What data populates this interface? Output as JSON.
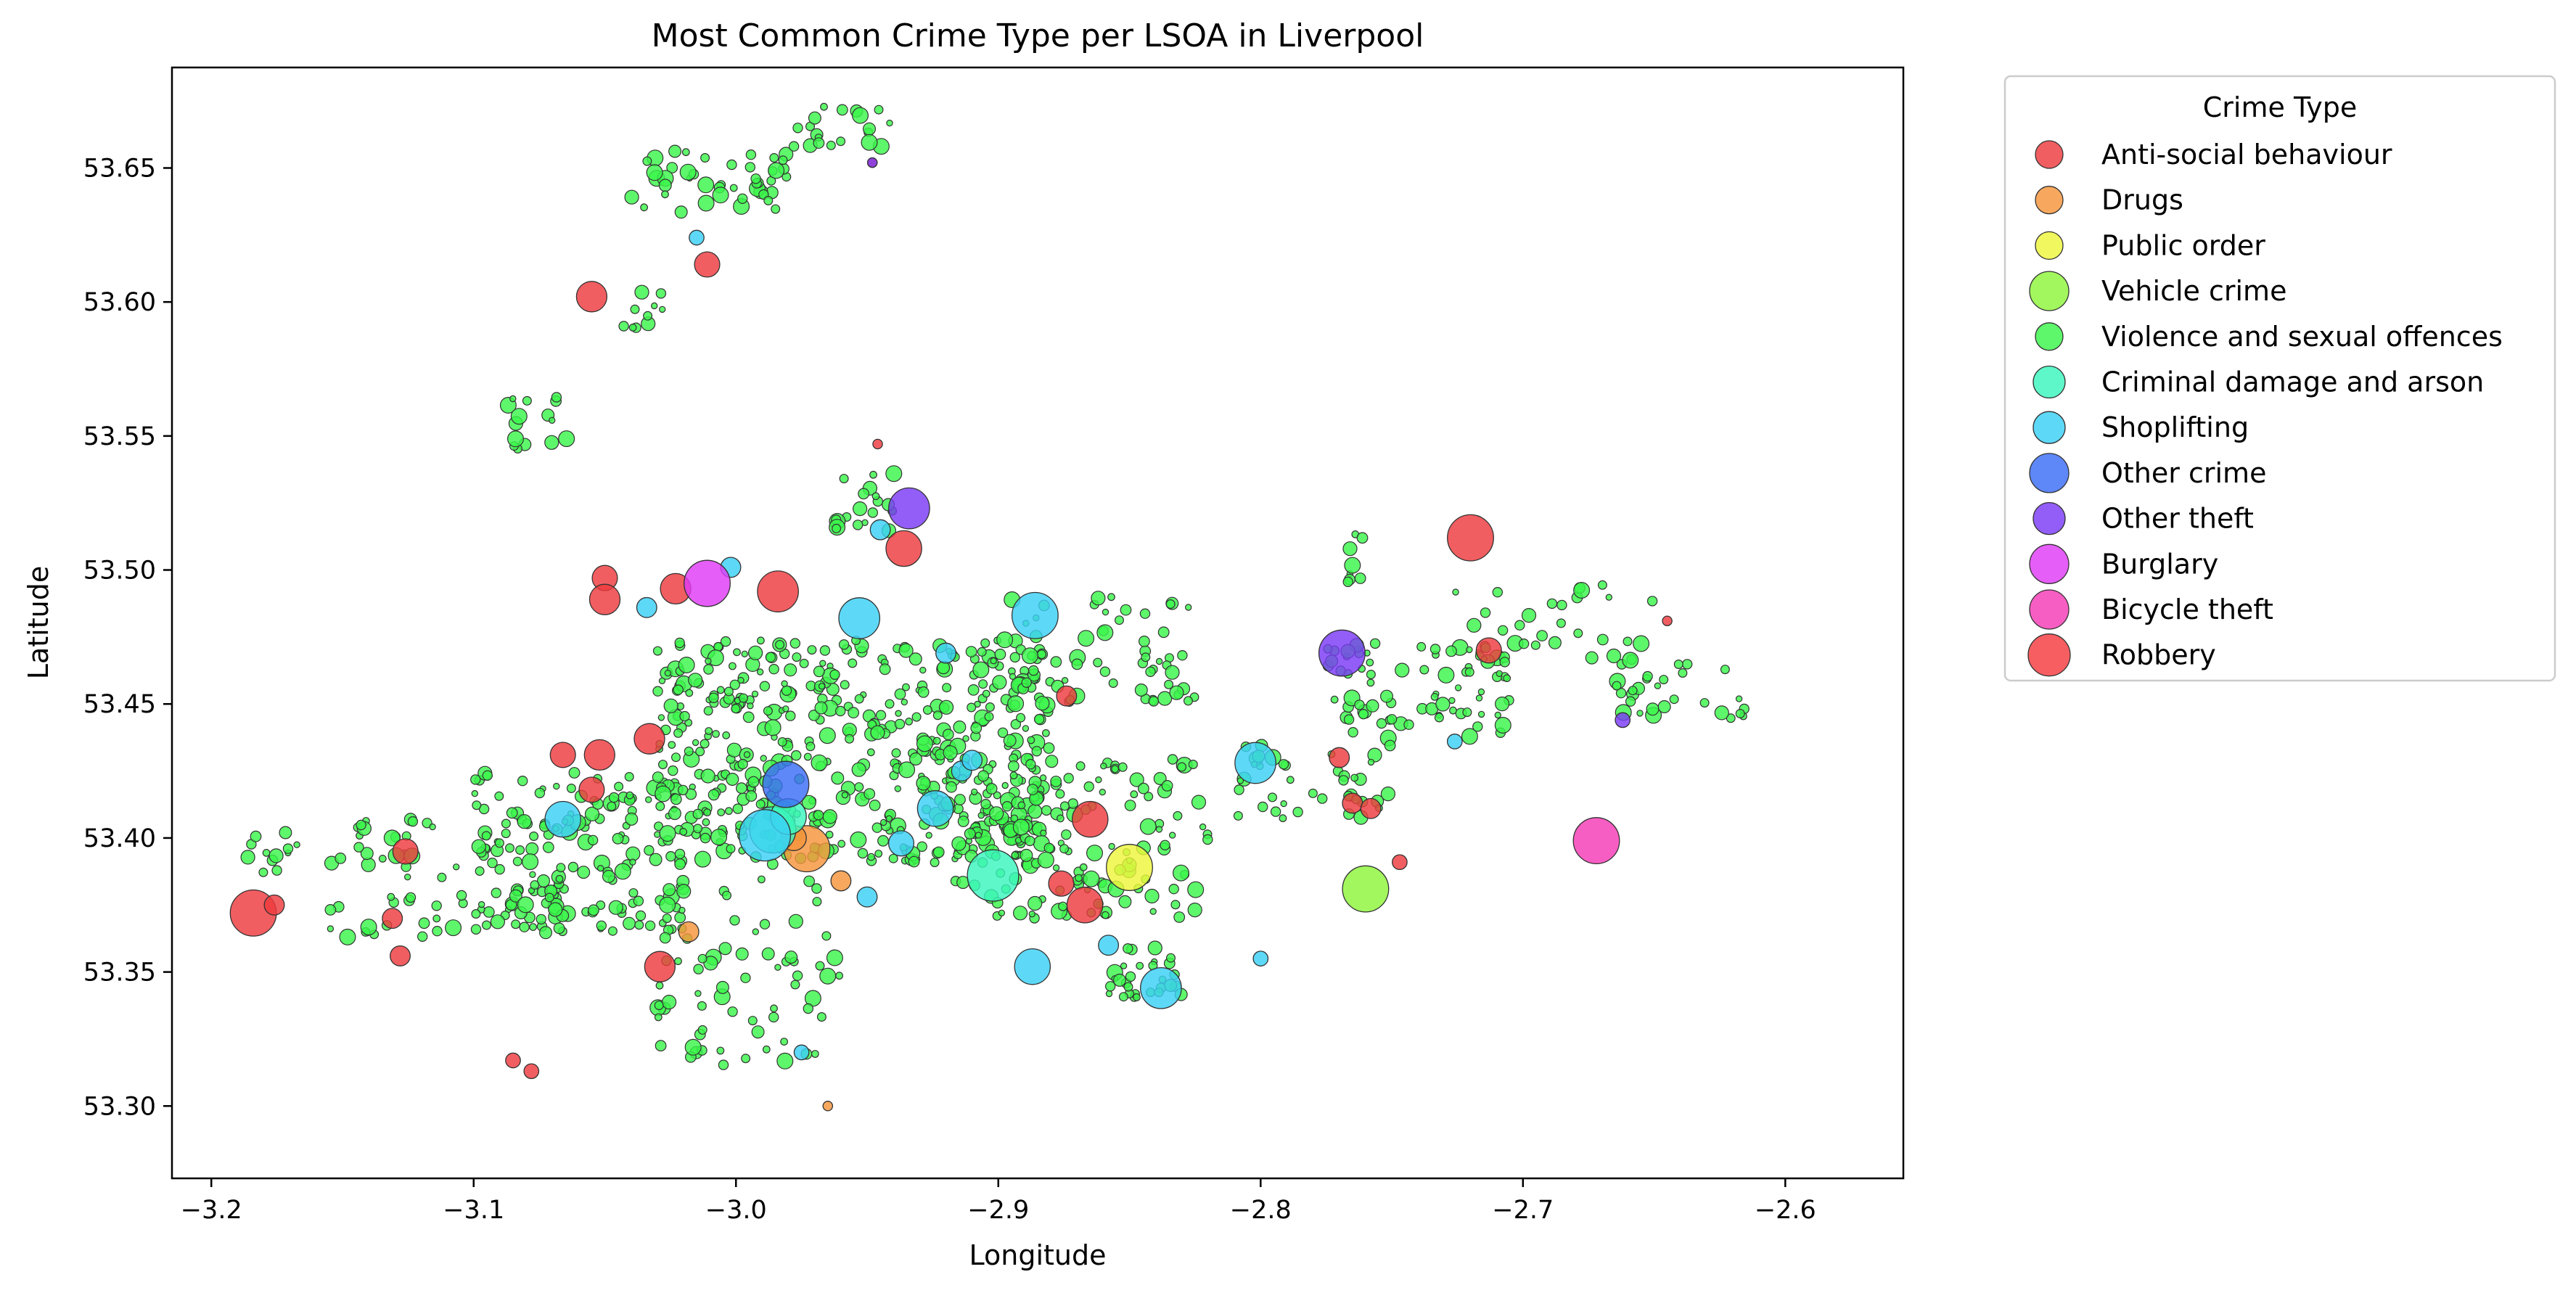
{
  "chart_data": {
    "type": "scatter",
    "title": "Most Common Crime Type per LSOA in Liverpool",
    "xlabel": "Longitude",
    "ylabel": "Latitude",
    "xlim": [
      -3.215,
      -2.555
    ],
    "ylim": [
      53.273,
      53.6875
    ],
    "xticks": [
      -3.2,
      -3.1,
      -3.0,
      -2.9,
      -2.8,
      -2.7,
      -2.6
    ],
    "xtick_labels": [
      "−3.2",
      "−3.1",
      "−3.0",
      "−2.9",
      "−2.8",
      "−2.7",
      "−2.6"
    ],
    "yticks": [
      53.3,
      53.35,
      53.4,
      53.45,
      53.5,
      53.55,
      53.6,
      53.65
    ],
    "ytick_labels": [
      "53.30",
      "53.35",
      "53.40",
      "53.45",
      "53.50",
      "53.55",
      "53.60",
      "53.65"
    ],
    "grid": false,
    "legend": {
      "title": "Crime Type",
      "placement": "outside-upper-right",
      "entries": [
        {
          "name": "Anti-social behaviour",
          "color": "#ee3a3e"
        },
        {
          "name": "Drugs",
          "color": "#f5953a"
        },
        {
          "name": "Public order",
          "color": "#eef53a"
        },
        {
          "name": "Vehicle crime",
          "color": "#8ef53a"
        },
        {
          "name": "Violence and sexual offences",
          "color": "#3af54a"
        },
        {
          "name": "Criminal damage and arson",
          "color": "#3af5bd"
        },
        {
          "name": "Shoplifting",
          "color": "#3acff5"
        },
        {
          "name": "Other crime",
          "color": "#3a6cf5"
        },
        {
          "name": "Other theft",
          "color": "#7a3af5"
        },
        {
          "name": "Burglary",
          "color": "#df3af5"
        },
        {
          "name": "Bicycle theft",
          "color": "#f53ab6"
        },
        {
          "name": "Robbery",
          "color": "#f53a3e"
        }
      ]
    },
    "series": [
      {
        "name": "Anti-social behaviour",
        "color": "#ee3a3e",
        "points": [
          [
            -3.055,
            53.602,
            5
          ],
          [
            -3.011,
            53.614,
            4
          ],
          [
            -3.05,
            53.497,
            4
          ],
          [
            -3.05,
            53.489,
            5
          ],
          [
            -3.023,
            53.493,
            5
          ],
          [
            -2.936,
            53.508,
            6
          ],
          [
            -2.984,
            53.492,
            7
          ],
          [
            -3.033,
            53.437,
            5
          ],
          [
            -3.052,
            53.431,
            5
          ],
          [
            -3.066,
            53.431,
            4
          ],
          [
            -3.055,
            53.418,
            4
          ],
          [
            -3.126,
            53.395,
            4
          ],
          [
            -3.184,
            53.372,
            8
          ],
          [
            -3.176,
            53.375,
            3
          ],
          [
            -3.131,
            53.37,
            3
          ],
          [
            -3.128,
            53.356,
            3
          ],
          [
            -3.029,
            53.352,
            5
          ],
          [
            -3.085,
            53.317,
            2
          ],
          [
            -3.078,
            53.313,
            2
          ],
          [
            -2.874,
            53.453,
            3
          ],
          [
            -2.865,
            53.407,
            6
          ],
          [
            -2.867,
            53.375,
            6
          ],
          [
            -2.876,
            53.383,
            4
          ],
          [
            -2.77,
            53.43,
            3
          ],
          [
            -2.765,
            53.413,
            3
          ],
          [
            -2.758,
            53.411,
            3
          ],
          [
            -2.747,
            53.391,
            2
          ],
          [
            -2.713,
            53.47,
            4
          ],
          [
            -2.72,
            53.512,
            8
          ],
          [
            -2.645,
            53.481,
            1
          ],
          [
            -2.946,
            53.547,
            1
          ],
          [
            -2.948,
            53.652,
            1
          ]
        ]
      },
      {
        "name": "Drugs",
        "color": "#f5953a",
        "points": [
          [
            -2.973,
            53.396,
            8
          ],
          [
            -3.018,
            53.365,
            3
          ],
          [
            -2.978,
            53.4,
            4
          ],
          [
            -2.96,
            53.384,
            3
          ],
          [
            -2.965,
            53.3,
            1
          ]
        ]
      },
      {
        "name": "Public order",
        "color": "#eef53a",
        "points": [
          [
            -2.85,
            53.389,
            8
          ]
        ]
      },
      {
        "name": "Vehicle crime",
        "color": "#8ef53a",
        "points": [
          [
            -2.76,
            53.381,
            8
          ]
        ]
      },
      {
        "name": "Criminal damage and arson",
        "color": "#3af5bd",
        "points": [
          [
            -2.902,
            53.386,
            9
          ],
          [
            -2.986,
            53.403,
            8
          ],
          [
            -2.98,
            53.408,
            6
          ]
        ]
      },
      {
        "name": "Shoplifting",
        "color": "#3acff5",
        "points": [
          [
            -2.886,
            53.483,
            8
          ],
          [
            -2.953,
            53.482,
            7
          ],
          [
            -2.924,
            53.411,
            6
          ],
          [
            -2.914,
            53.425,
            3
          ],
          [
            -2.91,
            53.429,
            3
          ],
          [
            -2.945,
            53.515,
            3
          ],
          [
            -2.92,
            53.469,
            3
          ],
          [
            -3.066,
            53.407,
            6
          ],
          [
            -3.034,
            53.486,
            3
          ],
          [
            -3.002,
            53.501,
            3
          ],
          [
            -3.015,
            53.624,
            2
          ],
          [
            -2.802,
            53.428,
            7
          ],
          [
            -2.887,
            53.352,
            6
          ],
          [
            -2.838,
            53.344,
            7
          ],
          [
            -2.858,
            53.36,
            3
          ],
          [
            -2.8,
            53.355,
            2
          ],
          [
            -2.726,
            53.436,
            2
          ],
          [
            -2.937,
            53.398,
            4
          ],
          [
            -2.95,
            53.378,
            3
          ],
          [
            -2.975,
            53.32,
            2
          ],
          [
            -2.989,
            53.401,
            9
          ]
        ]
      },
      {
        "name": "Other crime",
        "color": "#3a6cf5",
        "points": [
          [
            -2.981,
            53.42,
            8
          ]
        ]
      },
      {
        "name": "Other theft",
        "color": "#7a3af5",
        "points": [
          [
            -2.934,
            53.523,
            7
          ],
          [
            -2.769,
            53.469,
            8
          ],
          [
            -2.662,
            53.444,
            2
          ],
          [
            -2.948,
            53.652,
            1
          ]
        ]
      },
      {
        "name": "Burglary",
        "color": "#df3af5",
        "points": [
          [
            -3.011,
            53.495,
            8
          ]
        ]
      },
      {
        "name": "Bicycle theft",
        "color": "#f53ab6",
        "points": [
          [
            -2.672,
            53.399,
            8
          ]
        ]
      }
    ],
    "background_series": "Violence and sexual offences"
  }
}
